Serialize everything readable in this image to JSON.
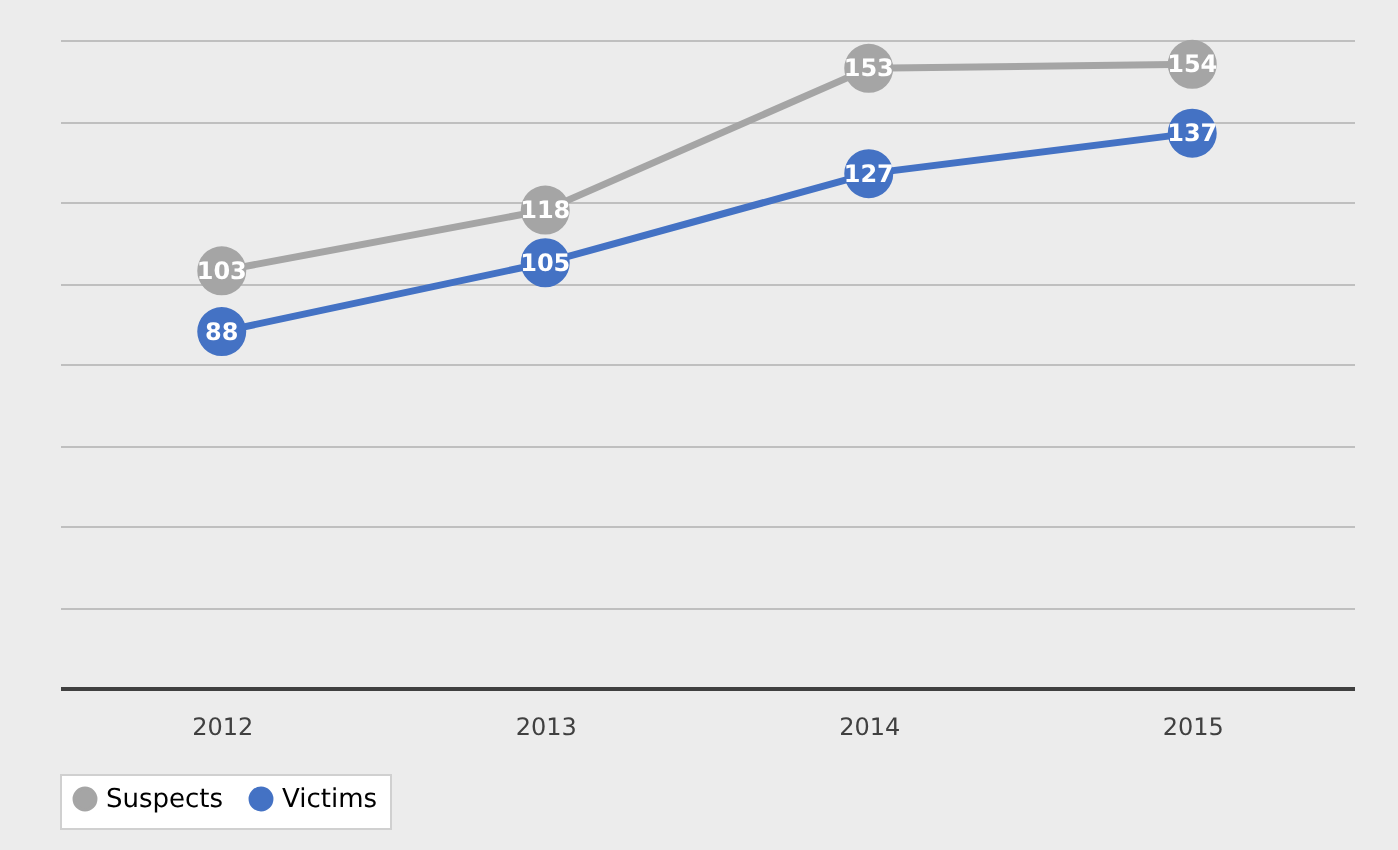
{
  "chart_data": {
    "type": "line",
    "categories": [
      "2012",
      "2013",
      "2014",
      "2015"
    ],
    "series": [
      {
        "name": "Suspects",
        "color": "#a5a5a5",
        "values": [
          103,
          118,
          153,
          154
        ]
      },
      {
        "name": "Victims",
        "color": "#4472c4",
        "values": [
          88,
          105,
          127,
          137
        ]
      }
    ],
    "grid": "y",
    "tick_labels": "x",
    "legend": "bottom",
    "marker": "circle",
    "line_style": "solid",
    "data_labels": true
  }
}
